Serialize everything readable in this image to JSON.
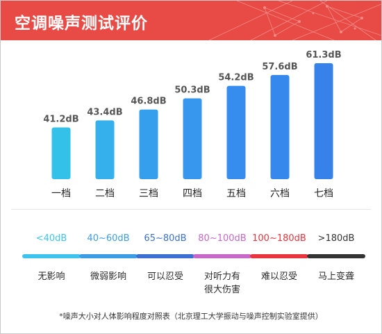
{
  "header": {
    "title": "空调噪声测试评价",
    "color": "#e84b45"
  },
  "chart_data": {
    "type": "bar",
    "categories": [
      "一档",
      "二档",
      "三档",
      "四档",
      "五档",
      "六档",
      "七档"
    ],
    "values": [
      41.2,
      43.4,
      46.8,
      50.3,
      54.2,
      57.6,
      61.3
    ],
    "data_labels": [
      "41.2dB",
      "43.4dB",
      "46.8dB",
      "50.3dB",
      "54.2dB",
      "57.6dB",
      "61.3dB"
    ],
    "unit": "dB",
    "ylim": [
      25,
      61.3
    ],
    "bar_colors": [
      "#33c1ea",
      "#35b0ec",
      "#369fed",
      "#3796ee",
      "#378ded",
      "#3788ec",
      "#3682ea"
    ],
    "grid": false,
    "legend": "none"
  },
  "legend": [
    {
      "range": "<40dB",
      "desc": "无影响",
      "color": "#3ec3ee"
    },
    {
      "range": "40~60dB",
      "desc": "微弱影响",
      "color": "#3d9ce6"
    },
    {
      "range": "65~80dB",
      "desc": "可以忍受",
      "color": "#3b6fd1"
    },
    {
      "range": "80~100dB",
      "desc": "对听力有\n很大伤害",
      "color": "#c767c7"
    },
    {
      "range": "100~180dB",
      "desc": "难以忍受",
      "color": "#e8343f"
    },
    {
      "range": ">180dB",
      "desc": "马上变聋",
      "color": "#333333"
    }
  ],
  "footnote": "*噪声大小对人体影响程度对照表（北京理工大学振动与噪声控制实验室提供）"
}
